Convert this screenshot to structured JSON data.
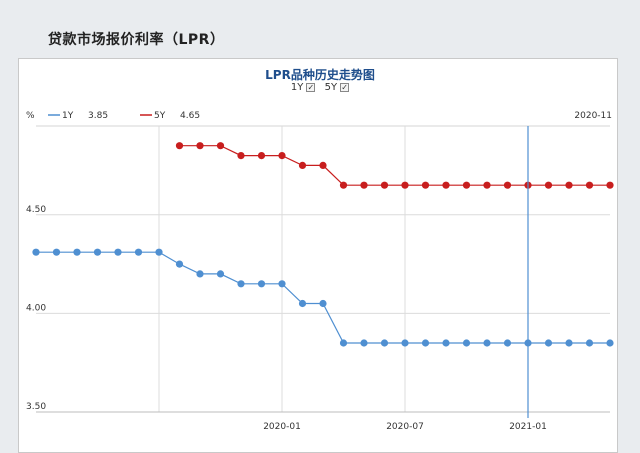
{
  "page": {
    "heading": "贷款市场报价利率（LPR）"
  },
  "chart_data": {
    "type": "line",
    "title": "LPR品种历史走势图",
    "unit_label": "%",
    "x_start_tick": "2020-11",
    "x_ticks": [
      "2020-01",
      "2020-07",
      "2021-01"
    ],
    "y_ticks": [
      3.5,
      4.0,
      4.5
    ],
    "y_tick_labels": [
      "3.50",
      "4.00",
      "4.50"
    ],
    "ylim": [
      3.5,
      4.95
    ],
    "grid": true,
    "x": [
      "2019-01",
      "2019-02",
      "2019-03",
      "2019-04",
      "2019-05",
      "2019-06",
      "2019-07",
      "2019-08",
      "2019-09",
      "2019-10",
      "2019-11",
      "2019-12",
      "2020-01",
      "2020-02",
      "2020-03",
      "2020-04",
      "2020-05",
      "2020-06",
      "2020-07",
      "2020-08",
      "2020-09",
      "2020-10",
      "2020-11",
      "2020-12",
      "2021-01",
      "2021-02",
      "2021-03",
      "2021-04",
      "2021-05"
    ],
    "series": [
      {
        "name": "1Y",
        "legend_value": "3.85",
        "color": "#4f8fd1",
        "checked": true,
        "values": [
          4.31,
          4.31,
          4.31,
          4.31,
          4.31,
          4.31,
          4.31,
          4.25,
          4.2,
          4.2,
          4.15,
          4.15,
          4.15,
          4.05,
          4.05,
          3.85,
          3.85,
          3.85,
          3.85,
          3.85,
          3.85,
          3.85,
          3.85,
          3.85,
          3.85,
          3.85,
          3.85,
          3.85,
          3.85
        ]
      },
      {
        "name": "5Y",
        "legend_value": "4.65",
        "color": "#c81e1e",
        "checked": true,
        "values": [
          null,
          null,
          null,
          null,
          null,
          null,
          null,
          4.85,
          4.85,
          4.85,
          4.8,
          4.8,
          4.8,
          4.75,
          4.75,
          4.65,
          4.65,
          4.65,
          4.65,
          4.65,
          4.65,
          4.65,
          4.65,
          4.65,
          4.65,
          4.65,
          4.65,
          4.65,
          4.65
        ]
      }
    ],
    "crosshair_x": "2021-01"
  }
}
